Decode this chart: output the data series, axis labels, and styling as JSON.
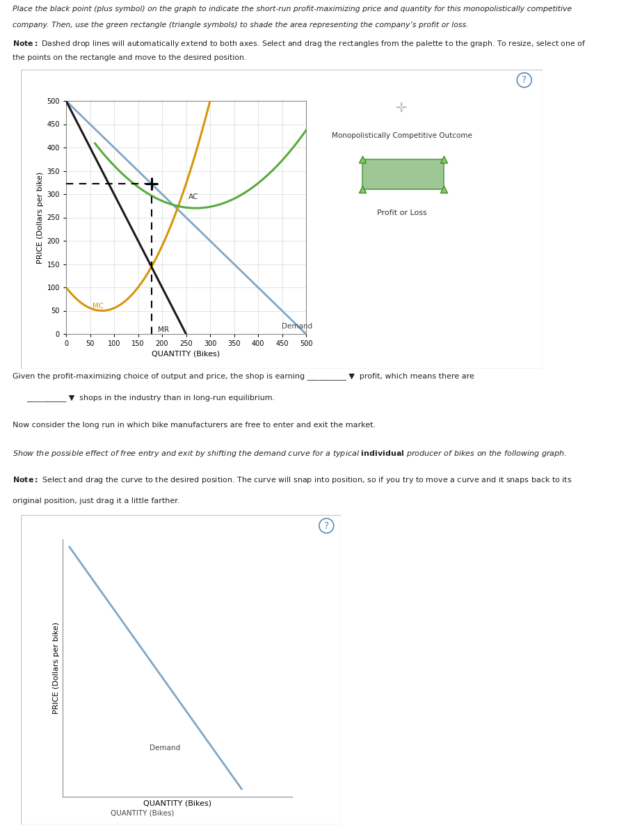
{
  "fig_width": 9.23,
  "fig_height": 12.0,
  "fig_bg": "#f0f0f0",
  "page_bg": "#ffffff",
  "text1_lines": [
    "Place the black point (plus symbol) on the graph to indicate the short-run profit-maximizing price and quantity for this monopolistically competitive",
    "company. Then, use the green rectangle (triangle symbols) to shade the area representing the company’s profit or loss.",
    "",
    "Note: Dashed drop lines will automatically extend to both axes. Select and drag the rectangles from the palette to the graph. To resize, select one of",
    "the points on the rectangle and move to the desired position."
  ],
  "graph1": {
    "xlim": [
      0,
      500
    ],
    "ylim": [
      0,
      500
    ],
    "xlabel": "QUANTITY (Bikes)",
    "ylabel": "PRICE (Dollars per bike)",
    "xticks": [
      0,
      50,
      100,
      150,
      200,
      250,
      300,
      350,
      400,
      450,
      500
    ],
    "yticks": [
      0,
      50,
      100,
      150,
      200,
      250,
      300,
      350,
      400,
      450,
      500
    ],
    "demand_color": "#7ea6c8",
    "mr_color": "#1a1a1a",
    "mc_color": "#d4960a",
    "ac_color": "#5aaa3c",
    "point_x": 200,
    "point_y": 300,
    "ac_min_x": 270,
    "ac_min_y": 270
  },
  "palette1_plus_color": "#aaaaaa",
  "palette1_title": "Monopolistically Competitive Outcome",
  "palette1_rect_color": "#6aaa5c",
  "palette1_rect_edge": "#3a8a2c",
  "palette1_label": "Profit or Loss",
  "text2_lines": [
    "Given the profit-maximizing choice of output and price, the shop is earning __________ ▼  profit, which means there are",
    "__________ ▼  shops in the industry than in long-run equilibrium."
  ],
  "text3": "Now consider the long run in which bike manufacturers are free to enter and exit the market.",
  "text4_pre": "Show the possible effect of free entry and exit by shifting the demand curve for a typical ",
  "text4_bold": "individual",
  "text4_post": " producer of bikes on the following graph.",
  "note2_lines": [
    "Note: Select and drag the curve to the desired position. The curve will snap into position, so if you try to move a curve and it snaps back to its",
    "original position, just drag it a little farther."
  ],
  "graph2": {
    "demand_color": "#7ea6c8"
  },
  "panel_border_color": "#c8c8c8",
  "qmark_color": "#5a8ab5",
  "grid_color": "#d8d8d8"
}
